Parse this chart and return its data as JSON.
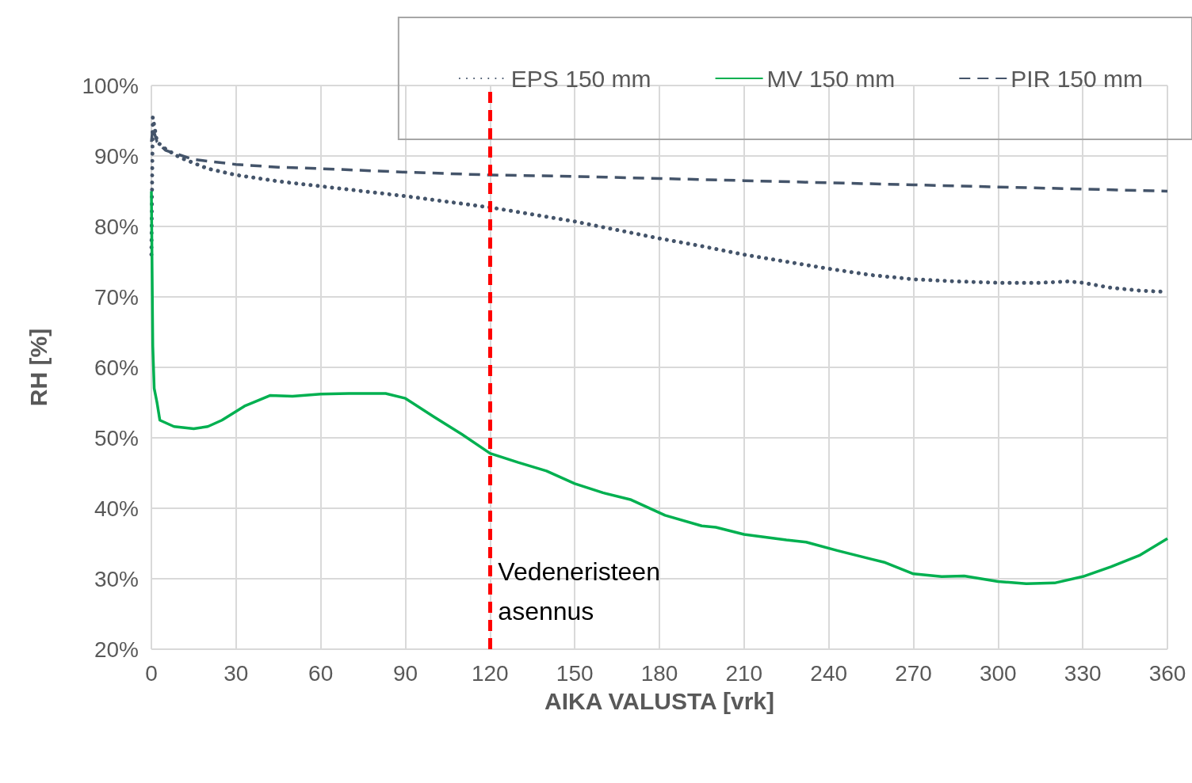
{
  "chart_data": {
    "type": "line",
    "xlabel": "AIKA VALUSTA [vrk]",
    "ylabel": "RH [%]",
    "xlim": [
      0,
      360
    ],
    "xticks": [
      0,
      30,
      60,
      90,
      120,
      150,
      180,
      210,
      240,
      270,
      300,
      330,
      360
    ],
    "ylim": [
      20,
      100
    ],
    "yticks": [
      {
        "value": 20,
        "label": "20%"
      },
      {
        "value": 30,
        "label": "30%"
      },
      {
        "value": 40,
        "label": "40%"
      },
      {
        "value": 50,
        "label": "50%"
      },
      {
        "value": 60,
        "label": "60%"
      },
      {
        "value": 70,
        "label": "70%"
      },
      {
        "value": 80,
        "label": "80%"
      },
      {
        "value": 90,
        "label": "90%"
      },
      {
        "value": 100,
        "label": "100%"
      }
    ],
    "grid": true,
    "legend": "top right",
    "marker": "none",
    "series": [
      {
        "name": "EPS 150 mm",
        "color": "#44546a",
        "line_style": "dotted",
        "x": [
          0,
          0.5,
          2,
          5,
          10,
          20,
          30,
          45,
          60,
          75,
          90,
          105,
          120,
          135,
          150,
          165,
          180,
          195,
          210,
          225,
          240,
          255,
          270,
          285,
          300,
          315,
          325,
          330,
          340,
          350,
          360
        ],
        "values": [
          76,
          95.5,
          92,
          91,
          89.8,
          88.2,
          87.3,
          86.4,
          85.7,
          85,
          84.3,
          83.5,
          82.7,
          81.7,
          80.7,
          79.5,
          78.3,
          77.2,
          76,
          75,
          74,
          73.1,
          72.5,
          72.2,
          72,
          72,
          72.2,
          72,
          71.3,
          70.9,
          70.7
        ]
      },
      {
        "name": "MV 150 mm",
        "color": "#00b050",
        "line_style": "solid",
        "x": [
          0,
          0.5,
          1,
          2,
          3,
          8,
          15,
          20,
          25,
          33,
          42,
          50,
          60,
          70,
          83,
          90,
          100,
          110,
          120,
          130,
          140,
          150,
          160,
          170,
          182,
          195,
          200,
          210,
          225,
          232,
          243,
          255,
          260,
          270,
          280,
          288,
          300,
          310,
          320,
          330,
          340,
          350,
          360
        ],
        "values": [
          85,
          63,
          57,
          55,
          52.5,
          51.6,
          51.3,
          51.6,
          52.5,
          54.5,
          56,
          55.9,
          56.2,
          56.3,
          56.3,
          55.6,
          53,
          50.5,
          47.8,
          46.5,
          45.3,
          43.5,
          42.2,
          41.2,
          39,
          37.5,
          37.3,
          36.3,
          35.5,
          35.2,
          34,
          32.8,
          32.3,
          30.7,
          30.3,
          30.4,
          29.6,
          29.3,
          29.4,
          30.3,
          31.7,
          33.3,
          35.7
        ]
      },
      {
        "name": "PIR 150 mm",
        "color": "#44546a",
        "line_style": "dashed",
        "x": [
          0,
          0.5,
          2,
          5,
          15,
          30,
          45,
          60,
          90,
          120,
          150,
          180,
          210,
          240,
          270,
          300,
          330,
          360
        ],
        "values": [
          92,
          94,
          92,
          90.8,
          89.5,
          88.8,
          88.4,
          88.2,
          87.7,
          87.3,
          87.1,
          86.8,
          86.5,
          86.2,
          85.9,
          85.6,
          85.3,
          85
        ]
      }
    ],
    "ref_lines": [
      {
        "axis": "x",
        "value": 120,
        "label": "Vedeneristeen\nasennus",
        "color": "#ff0000",
        "line_style": "dashed"
      }
    ]
  }
}
